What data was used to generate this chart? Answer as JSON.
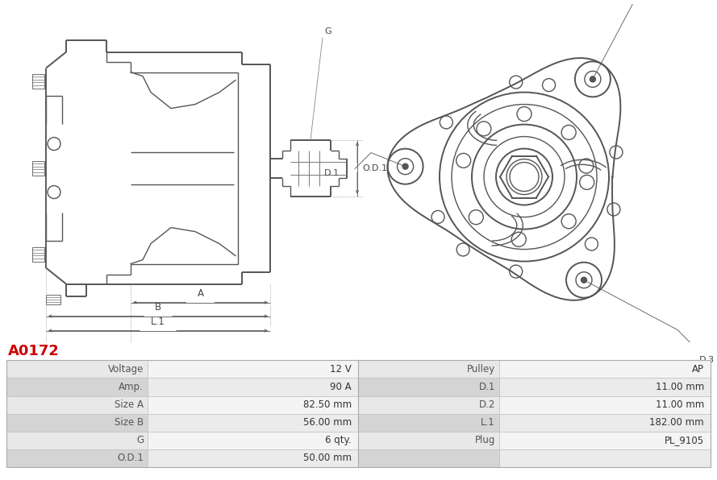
{
  "title": "A0172",
  "title_color": "#cc0000",
  "bg_color": "#ffffff",
  "table_data": {
    "left_col": [
      [
        "Voltage",
        "12 V"
      ],
      [
        "Amp.",
        "90 A"
      ],
      [
        "Size A",
        "82.50 mm"
      ],
      [
        "Size B",
        "56.00 mm"
      ],
      [
        "G",
        "6 qty."
      ],
      [
        "O.D.1",
        "50.00 mm"
      ]
    ],
    "right_col": [
      [
        "Pulley",
        "AP"
      ],
      [
        "D.1",
        "11.00 mm"
      ],
      [
        "D.2",
        "11.00 mm"
      ],
      [
        "L.1",
        "182.00 mm"
      ],
      [
        "Plug",
        "PL_9105"
      ],
      [
        "",
        ""
      ]
    ]
  },
  "line_color": "#555555",
  "dim_color": "#555555",
  "annotation_color": "#444444",
  "dot_line_color": "#888888"
}
